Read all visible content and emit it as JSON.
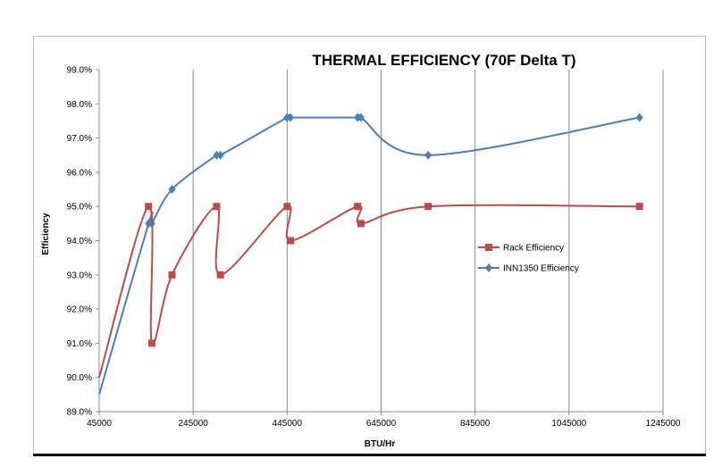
{
  "chart_data": {
    "type": "line",
    "title": "THERMAL EFFICIENCY (70F Delta T)",
    "xlabel": "BTU/Hr",
    "ylabel": "Efficiency",
    "xlim": [
      45000,
      1245000
    ],
    "ylim": [
      0.89,
      0.99
    ],
    "x_ticks": [
      "45000",
      "245000",
      "445000",
      "645000",
      "845000",
      "1045000",
      "1245000"
    ],
    "x_tick_values": [
      45000,
      245000,
      445000,
      645000,
      845000,
      1045000,
      1245000
    ],
    "y_ticks": [
      "89.0%",
      "90.0%",
      "91.0%",
      "92.0%",
      "93.0%",
      "94.0%",
      "95.0%",
      "96.0%",
      "97.0%",
      "98.0%",
      "99.0%"
    ],
    "y_tick_values": [
      0.89,
      0.9,
      0.91,
      0.92,
      0.93,
      0.94,
      0.95,
      0.96,
      0.97,
      0.98,
      0.99
    ],
    "grid": "vertical",
    "legend_position": "right",
    "smooth": true,
    "series": [
      {
        "name": "Rack Efficiency",
        "color": "#be4b48",
        "marker": "square",
        "x": [
          45000,
          150000,
          157000,
          200000,
          295000,
          303000,
          445000,
          452000,
          595000,
          602000,
          745000,
          1195000
        ],
        "y": [
          0.9,
          0.95,
          0.91,
          0.93,
          0.95,
          0.93,
          0.95,
          0.94,
          0.95,
          0.945,
          0.95,
          0.95
        ]
      },
      {
        "name": "INN1350 Efficiency",
        "color": "#4a7ebb",
        "marker": "diamond",
        "x": [
          45000,
          150000,
          157000,
          200000,
          295000,
          303000,
          445000,
          452000,
          595000,
          602000,
          745000,
          1195000
        ],
        "y": [
          0.895,
          0.945,
          0.945,
          0.955,
          0.965,
          0.965,
          0.976,
          0.976,
          0.976,
          0.976,
          0.965,
          0.976
        ]
      }
    ]
  }
}
